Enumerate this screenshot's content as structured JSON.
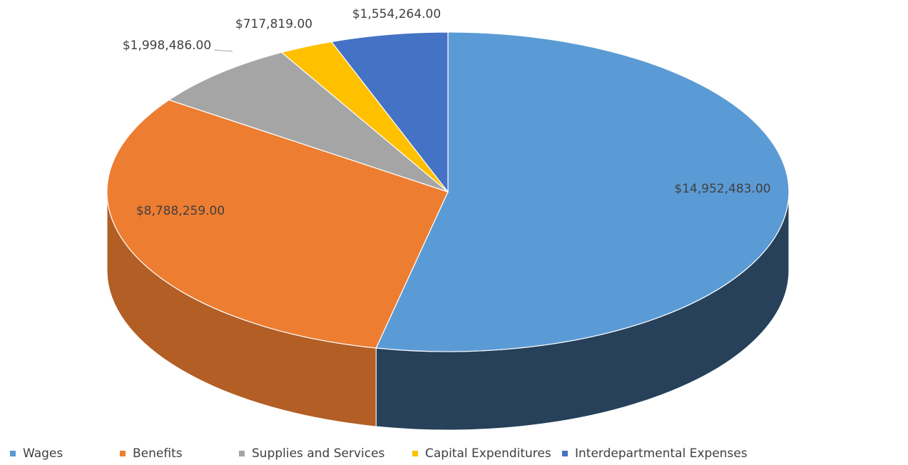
{
  "chart_data": {
    "type": "pie3d",
    "categories": [
      "Wages",
      "Benefits",
      "Supplies and Services",
      "Capital Expenditures",
      "Interdepartmental Expenses"
    ],
    "values": [
      14952483,
      8788259,
      1998486,
      717819,
      1554264
    ],
    "value_labels": [
      "$14,952,483.00",
      "$8,788,259.00",
      "$1,998,486.00",
      "$717,819.00",
      "$1,554,264.00"
    ],
    "colors": [
      "#5b9bd5",
      "#ed7d31",
      "#a5a5a5",
      "#ffc000",
      "#4472c4"
    ],
    "legend": "bottom"
  }
}
